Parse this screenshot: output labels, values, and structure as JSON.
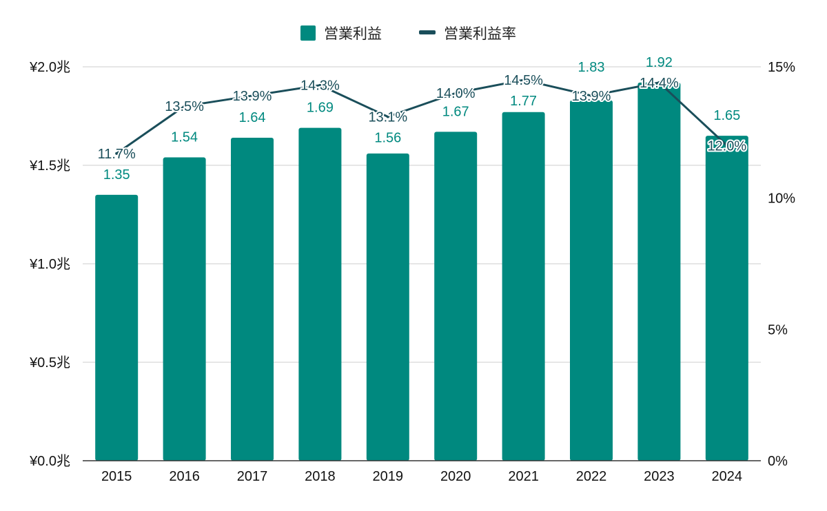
{
  "legend": {
    "profit_label": "営業利益",
    "rate_label": "営業利益率"
  },
  "colors": {
    "bar": "#00897f",
    "line": "#1a4e5a",
    "grid": "#cccccc",
    "axis": "#333333"
  },
  "chart_data": {
    "type": "bar",
    "categories": [
      "2015",
      "2016",
      "2017",
      "2018",
      "2019",
      "2020",
      "2021",
      "2022",
      "2023",
      "2024"
    ],
    "series": [
      {
        "name": "営業利益",
        "type": "bar",
        "axis": "left",
        "values": [
          1.35,
          1.54,
          1.64,
          1.69,
          1.56,
          1.67,
          1.77,
          1.83,
          1.92,
          1.65
        ],
        "labels": [
          "1.35",
          "1.54",
          "1.64",
          "1.69",
          "1.56",
          "1.67",
          "1.77",
          "1.83",
          "1.92",
          "1.65"
        ]
      },
      {
        "name": "営業利益率",
        "type": "line",
        "axis": "right",
        "values": [
          11.7,
          13.5,
          13.9,
          14.3,
          13.1,
          14.0,
          14.5,
          13.9,
          14.4,
          12.0
        ],
        "labels": [
          "11.7%",
          "13.5%",
          "13.9%",
          "14.3%",
          "13.1%",
          "14.0%",
          "14.5%",
          "13.9%",
          "14.4%",
          "12.0%"
        ]
      }
    ],
    "y_left": {
      "range": [
        0,
        2.0
      ],
      "ticks": [
        0,
        0.5,
        1.0,
        1.5,
        2.0
      ],
      "tick_labels": [
        "¥0.0兆",
        "¥0.5兆",
        "¥1.0兆",
        "¥1.5兆",
        "¥2.0兆"
      ]
    },
    "y_right": {
      "range": [
        0,
        15
      ],
      "ticks": [
        0,
        5,
        10,
        15
      ],
      "tick_labels": [
        "0%",
        "5%",
        "10%",
        "15%"
      ]
    },
    "grid": true,
    "legend_position": "top-center"
  }
}
